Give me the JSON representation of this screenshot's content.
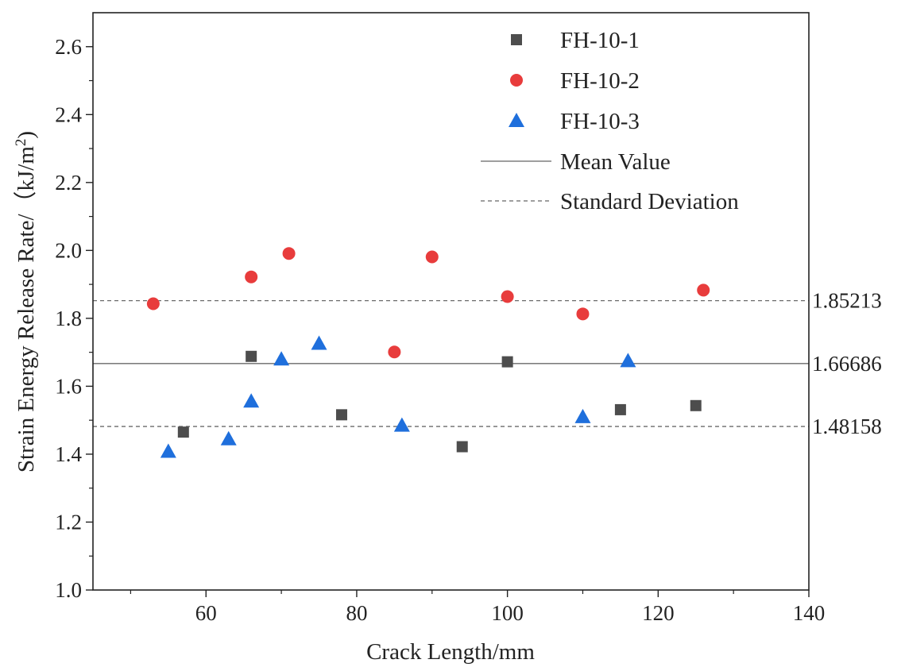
{
  "chart_data": {
    "type": "scatter",
    "xlabel": "Crack Length/mm",
    "ylabel": "Strain Energy Release Rate/（kJ/m",
    "ylabel_sup": "2",
    "ylabel_close": ")",
    "xlim": [
      45,
      140
    ],
    "ylim": [
      1.0,
      2.7
    ],
    "x_ticks": [
      60,
      80,
      100,
      120,
      140
    ],
    "y_ticks": [
      1.0,
      1.2,
      1.4,
      1.6,
      1.8,
      2.0,
      2.2,
      2.4,
      2.6
    ],
    "x_tick_labels": [
      "60",
      "80",
      "100",
      "120",
      "140"
    ],
    "y_tick_labels": [
      "1.0",
      "1.2",
      "1.4",
      "1.6",
      "1.8",
      "2.0",
      "2.2",
      "2.4",
      "2.6"
    ],
    "grid": false,
    "legend_position": "top-right",
    "series": [
      {
        "name": "FH-10-1",
        "marker": "square",
        "color": "#4d4d4d",
        "points": [
          [
            57,
            1.465
          ],
          [
            66,
            1.688
          ],
          [
            78,
            1.516
          ],
          [
            94,
            1.422
          ],
          [
            100,
            1.672
          ],
          [
            115,
            1.531
          ],
          [
            125,
            1.543
          ]
        ]
      },
      {
        "name": "FH-10-2",
        "marker": "circle",
        "color": "#e83c3c",
        "points": [
          [
            53,
            1.843
          ],
          [
            66,
            1.922
          ],
          [
            71,
            1.991
          ],
          [
            85,
            1.701
          ],
          [
            90,
            1.981
          ],
          [
            100,
            1.864
          ],
          [
            110,
            1.813
          ],
          [
            126,
            1.883
          ]
        ]
      },
      {
        "name": "FH-10-3",
        "marker": "triangle",
        "color": "#1f6fdc",
        "points": [
          [
            55,
            1.408
          ],
          [
            63,
            1.445
          ],
          [
            66,
            1.556
          ],
          [
            70,
            1.68
          ],
          [
            75,
            1.726
          ],
          [
            86,
            1.485
          ],
          [
            110,
            1.51
          ],
          [
            116,
            1.675
          ]
        ]
      }
    ],
    "reference_lines": [
      {
        "name": "Mean Value",
        "style": "solid",
        "value": 1.66686,
        "label": "1.66686"
      },
      {
        "name": "Standard Deviation",
        "style": "dashed",
        "value": 1.85213,
        "label": "1.85213"
      },
      {
        "name": "Standard Deviation",
        "style": "dashed",
        "value": 1.48158,
        "label": "1.48158"
      }
    ],
    "legend": [
      {
        "label": "FH-10-1",
        "kind": "square",
        "color": "#4d4d4d"
      },
      {
        "label": "FH-10-2",
        "kind": "circle",
        "color": "#e83c3c"
      },
      {
        "label": "FH-10-3",
        "kind": "triangle",
        "color": "#1f6fdc"
      },
      {
        "label": "Mean Value",
        "kind": "solid-line",
        "color": "#666666"
      },
      {
        "label": "Standard Deviation",
        "kind": "dashed-line",
        "color": "#666666"
      }
    ]
  }
}
